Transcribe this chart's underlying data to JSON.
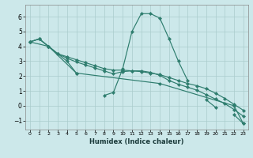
{
  "xlabel": "Humidex (Indice chaleur)",
  "ylabel": "",
  "bg_color": "#cce8ea",
  "grid_color": "#aacccc",
  "line_color": "#2e7d6e",
  "xlim": [
    -0.5,
    23.5
  ],
  "ylim": [
    -1.6,
    6.8
  ],
  "xticks": [
    0,
    1,
    2,
    3,
    4,
    5,
    6,
    7,
    8,
    9,
    10,
    11,
    12,
    13,
    14,
    15,
    16,
    17,
    18,
    19,
    20,
    21,
    22,
    23
  ],
  "yticks": [
    -1,
    0,
    1,
    2,
    3,
    4,
    5,
    6
  ],
  "line0_segments": [
    {
      "x": [
        0,
        1,
        2,
        3,
        4,
        5
      ],
      "y": [
        4.3,
        4.5,
        4.0,
        3.5,
        3.0,
        2.2
      ]
    },
    {
      "x": [
        8,
        9,
        10,
        11,
        12,
        13,
        14,
        15,
        16,
        17
      ],
      "y": [
        0.7,
        0.9,
        2.5,
        5.0,
        6.2,
        6.2,
        5.9,
        4.5,
        3.0,
        1.7
      ]
    },
    {
      "x": [
        19,
        20
      ],
      "y": [
        0.4,
        -0.1
      ]
    },
    {
      "x": [
        22,
        23
      ],
      "y": [
        -0.6,
        -1.2
      ]
    }
  ],
  "line1_x": [
    0,
    1,
    2,
    3,
    4,
    5,
    6,
    7,
    8,
    9,
    10,
    11,
    12,
    13,
    14,
    15,
    16,
    17,
    18,
    19,
    20,
    21,
    22,
    23
  ],
  "line1_y": [
    4.3,
    4.5,
    4.0,
    3.5,
    3.3,
    3.1,
    2.9,
    2.7,
    2.5,
    2.4,
    2.4,
    2.35,
    2.3,
    2.2,
    2.1,
    1.9,
    1.7,
    1.5,
    1.35,
    1.15,
    0.85,
    0.5,
    0.1,
    -0.3
  ],
  "line2_x": [
    0,
    1,
    2,
    3,
    4,
    5,
    6,
    7,
    8,
    9,
    10,
    11,
    12,
    13,
    14,
    15,
    16,
    17,
    18,
    19,
    20,
    21,
    22,
    23
  ],
  "line2_y": [
    4.3,
    4.5,
    4.0,
    3.5,
    3.2,
    2.95,
    2.75,
    2.55,
    2.35,
    2.15,
    2.3,
    2.35,
    2.35,
    2.25,
    2.05,
    1.7,
    1.45,
    1.25,
    1.05,
    0.75,
    0.45,
    0.15,
    -0.25,
    -0.7
  ],
  "line3_x": [
    0,
    2,
    5,
    14,
    22,
    23
  ],
  "line3_y": [
    4.3,
    4.0,
    2.2,
    1.5,
    0.0,
    -1.2
  ]
}
